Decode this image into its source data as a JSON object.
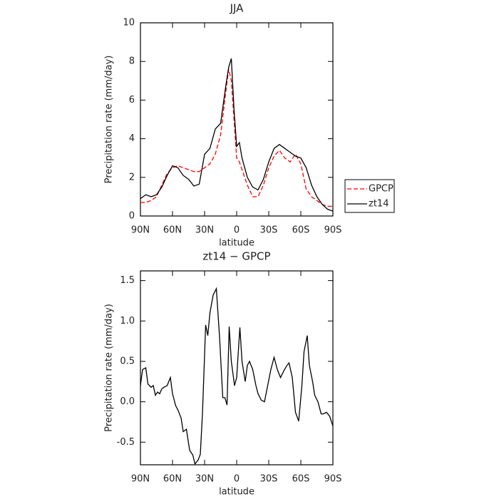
{
  "chart_data": [
    {
      "type": "line",
      "title": "JJA",
      "x_label": "latitude",
      "y_label": "Precipitation rate (mm/day)",
      "x": [
        90,
        85,
        80,
        75,
        70,
        65,
        60,
        55,
        50,
        45,
        40,
        35,
        30,
        25,
        20,
        15,
        10,
        7.5,
        5,
        2.5,
        0,
        -2.5,
        -5,
        -10,
        -15,
        -20,
        -25,
        -30,
        -35,
        -40,
        -45,
        -50,
        -55,
        -60,
        -65,
        -70,
        -75,
        -80,
        -85,
        -90
      ],
      "series": [
        {
          "name": "GPCP",
          "color": "#ff0000",
          "dash": true,
          "values": [
            0.7,
            0.7,
            0.8,
            1.0,
            1.6,
            2.2,
            2.5,
            2.6,
            2.5,
            2.4,
            2.3,
            2.3,
            2.5,
            2.7,
            3.2,
            4.2,
            6.5,
            7.6,
            7.0,
            5.0,
            3.0,
            2.8,
            2.4,
            1.6,
            1.0,
            1.0,
            1.6,
            2.5,
            3.1,
            3.4,
            3.0,
            2.8,
            3.2,
            2.7,
            1.4,
            1.0,
            0.8,
            0.6,
            0.5,
            0.5
          ]
        },
        {
          "name": "zt14",
          "color": "#000000",
          "dash": false,
          "values": [
            0.9,
            1.1,
            1.0,
            1.1,
            1.5,
            2.1,
            2.6,
            2.5,
            2.1,
            1.9,
            1.55,
            1.65,
            3.2,
            3.5,
            4.5,
            4.8,
            6.8,
            7.7,
            8.15,
            5.5,
            3.6,
            3.8,
            3.0,
            2.0,
            1.5,
            1.35,
            1.9,
            2.8,
            3.5,
            3.7,
            3.5,
            3.3,
            3.1,
            3.0,
            2.5,
            1.6,
            1.0,
            0.6,
            0.35,
            0.25
          ]
        }
      ],
      "xlim": [
        90,
        -90
      ],
      "xticks": [
        {
          "value": 90,
          "label": "90N"
        },
        {
          "value": 60,
          "label": "60N"
        },
        {
          "value": 30,
          "label": "30N"
        },
        0,
        {
          "value": -30,
          "label": "30S"
        },
        {
          "value": -60,
          "label": "60S"
        },
        {
          "value": -90,
          "label": "90S"
        }
      ],
      "ylim": [
        0,
        10
      ],
      "yticks": [
        0,
        2,
        4,
        6,
        8,
        10
      ],
      "legend": "right"
    },
    {
      "type": "line",
      "title": "zt14 − GPCP",
      "x_label": "latitude",
      "y_label": "Precipitation rate (mm/day)",
      "x": [
        90,
        88,
        85,
        83,
        80,
        78,
        76,
        74,
        72,
        70,
        68,
        65,
        62,
        60,
        57,
        55,
        52,
        50,
        47,
        44,
        41,
        39,
        36,
        34,
        32,
        29,
        27,
        25,
        22,
        19,
        16,
        13,
        11,
        9,
        7,
        5,
        3,
        2,
        0,
        -3,
        -5,
        -8,
        -10,
        -12,
        -15,
        -18,
        -20,
        -23,
        -26,
        -29,
        -32,
        -35,
        -38,
        -41,
        -44,
        -47,
        -49,
        -52,
        -55,
        -58,
        -61,
        -63,
        -66,
        -68,
        -71,
        -73,
        -76,
        -79,
        -81,
        -84,
        -87,
        -90
      ],
      "series": [
        {
          "color": "#000000",
          "dash": false,
          "values": [
            0.2,
            0.4,
            0.42,
            0.22,
            0.18,
            0.2,
            0.08,
            0.12,
            0.1,
            0.16,
            0.18,
            0.2,
            0.3,
            0.1,
            -0.05,
            -0.1,
            -0.2,
            -0.37,
            -0.34,
            -0.6,
            -0.66,
            -0.77,
            -0.72,
            -0.65,
            -0.15,
            0.95,
            0.82,
            1.1,
            1.32,
            1.4,
            0.8,
            0.05,
            0.05,
            -0.04,
            0.93,
            0.5,
            0.3,
            0.2,
            0.3,
            0.92,
            0.5,
            0.25,
            0.45,
            0.5,
            0.4,
            0.2,
            0.1,
            0.02,
            0.0,
            0.2,
            0.4,
            0.55,
            0.4,
            0.3,
            0.38,
            0.45,
            0.48,
            0.3,
            -0.13,
            -0.24,
            0.2,
            0.62,
            0.82,
            0.45,
            0.25,
            0.08,
            0.0,
            -0.15,
            -0.15,
            -0.13,
            -0.18,
            -0.3
          ]
        }
      ],
      "xlim": [
        90,
        -90
      ],
      "xticks": [
        {
          "value": 90,
          "label": "90N"
        },
        {
          "value": 60,
          "label": "60N"
        },
        {
          "value": 30,
          "label": "30N"
        },
        0,
        {
          "value": -30,
          "label": "30S"
        },
        {
          "value": -60,
          "label": "60S"
        },
        {
          "value": -90,
          "label": "90S"
        }
      ],
      "ylim": [
        -0.78,
        1.62
      ],
      "yticks": [
        -0.5,
        {
          "value": 0,
          "label": "0.0"
        },
        0.5,
        {
          "value": 1,
          "label": "1.0"
        },
        1.5
      ]
    }
  ]
}
